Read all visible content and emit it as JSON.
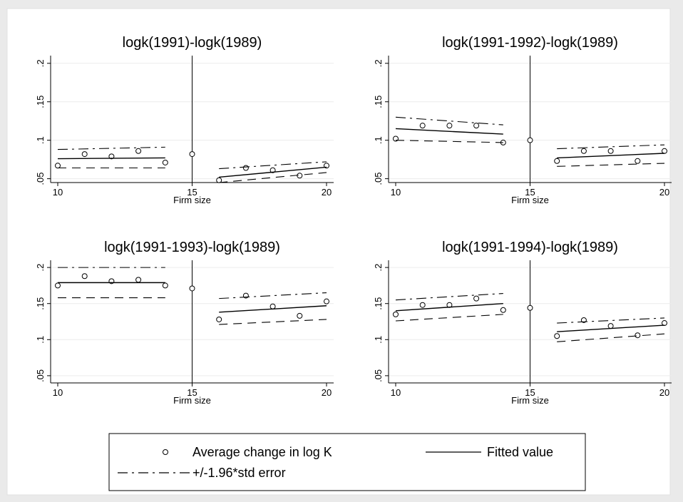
{
  "figure": {
    "panel_xlabel": "Firm size",
    "legend": {
      "marker_label": "Average change in log K",
      "fit_label": "Fitted value",
      "ci_label": "+/-1.96*std error"
    }
  },
  "chart_data": [
    {
      "type": "scatter",
      "title": "logk(1991)-logk(1989)",
      "xlabel": "Firm size",
      "ylabel": "",
      "xlim": [
        10,
        20
      ],
      "ylim": [
        0.045,
        0.21
      ],
      "xticks": [
        10,
        15,
        20
      ],
      "yticks": [
        0.05,
        0.1,
        0.15,
        0.2
      ],
      "ytick_labels": [
        ".05",
        ".1",
        ".15",
        ".2"
      ],
      "xtick_labels": [
        "10",
        "15",
        "20"
      ],
      "cutoff": 15,
      "series": [
        {
          "name": "Average change in log K",
          "x": [
            10,
            11,
            12,
            13,
            14,
            15,
            16,
            17,
            18,
            19,
            20
          ],
          "y": [
            0.067,
            0.082,
            0.079,
            0.086,
            0.071,
            0.082,
            0.048,
            0.064,
            0.061,
            0.054,
            0.067
          ]
        },
        {
          "name": "Fitted value",
          "segments": [
            {
              "x": [
                10,
                14
              ],
              "y": [
                0.076,
                0.077
              ]
            },
            {
              "x": [
                16,
                20
              ],
              "y": [
                0.052,
                0.065
              ]
            }
          ]
        },
        {
          "name": "+/-1.96*std error (upper)",
          "segments": [
            {
              "x": [
                10,
                14
              ],
              "y": [
                0.088,
                0.091
              ]
            },
            {
              "x": [
                16,
                20
              ],
              "y": [
                0.063,
                0.072
              ]
            }
          ]
        },
        {
          "name": "+/-1.96*std error (lower)",
          "segments": [
            {
              "x": [
                10,
                14
              ],
              "y": [
                0.064,
                0.064
              ]
            },
            {
              "x": [
                16,
                20
              ],
              "y": [
                0.045,
                0.058
              ]
            }
          ]
        }
      ]
    },
    {
      "type": "scatter",
      "title": "logk(1991-1992)-logk(1989)",
      "xlabel": "Firm size",
      "ylabel": "",
      "xlim": [
        10,
        20
      ],
      "ylim": [
        0.045,
        0.21
      ],
      "xticks": [
        10,
        15,
        20
      ],
      "yticks": [
        0.05,
        0.1,
        0.15,
        0.2
      ],
      "ytick_labels": [
        ".05",
        ".1",
        ".15",
        ".2"
      ],
      "xtick_labels": [
        "10",
        "15",
        "20"
      ],
      "cutoff": 15,
      "series": [
        {
          "name": "Average change in log K",
          "x": [
            10,
            11,
            12,
            13,
            14,
            15,
            16,
            17,
            18,
            19,
            20
          ],
          "y": [
            0.102,
            0.119,
            0.119,
            0.119,
            0.097,
            0.1,
            0.073,
            0.086,
            0.086,
            0.073,
            0.086
          ]
        },
        {
          "name": "Fitted value",
          "segments": [
            {
              "x": [
                10,
                14
              ],
              "y": [
                0.115,
                0.108
              ]
            },
            {
              "x": [
                16,
                20
              ],
              "y": [
                0.077,
                0.083
              ]
            }
          ]
        },
        {
          "name": "+/-1.96*std error (upper)",
          "segments": [
            {
              "x": [
                10,
                14
              ],
              "y": [
                0.13,
                0.12
              ]
            },
            {
              "x": [
                16,
                20
              ],
              "y": [
                0.089,
                0.094
              ]
            }
          ]
        },
        {
          "name": "+/-1.96*std error (lower)",
          "segments": [
            {
              "x": [
                10,
                14
              ],
              "y": [
                0.1,
                0.097
              ]
            },
            {
              "x": [
                16,
                20
              ],
              "y": [
                0.066,
                0.07
              ]
            }
          ]
        }
      ]
    },
    {
      "type": "scatter",
      "title": "logk(1991-1993)-logk(1989)",
      "xlabel": "Firm size",
      "ylabel": "",
      "xlim": [
        10,
        20
      ],
      "ylim": [
        0.04,
        0.21
      ],
      "xticks": [
        10,
        15,
        20
      ],
      "yticks": [
        0.05,
        0.1,
        0.15,
        0.2
      ],
      "ytick_labels": [
        ".05",
        ".1",
        ".15",
        ".2"
      ],
      "xtick_labels": [
        "10",
        "15",
        "20"
      ],
      "cutoff": 15,
      "series": [
        {
          "name": "Average change in log K",
          "x": [
            10,
            11,
            12,
            13,
            14,
            15,
            16,
            17,
            18,
            19,
            20
          ],
          "y": [
            0.175,
            0.188,
            0.181,
            0.183,
            0.175,
            0.171,
            0.128,
            0.161,
            0.146,
            0.133,
            0.153
          ]
        },
        {
          "name": "Fitted value",
          "segments": [
            {
              "x": [
                10,
                14
              ],
              "y": [
                0.179,
                0.179
              ]
            },
            {
              "x": [
                16,
                20
              ],
              "y": [
                0.138,
                0.147
              ]
            }
          ]
        },
        {
          "name": "+/-1.96*std error (upper)",
          "segments": [
            {
              "x": [
                10,
                14
              ],
              "y": [
                0.2,
                0.2
              ]
            },
            {
              "x": [
                16,
                20
              ],
              "y": [
                0.157,
                0.165
              ]
            }
          ]
        },
        {
          "name": "+/-1.96*std error (lower)",
          "segments": [
            {
              "x": [
                10,
                14
              ],
              "y": [
                0.158,
                0.158
              ]
            },
            {
              "x": [
                16,
                20
              ],
              "y": [
                0.121,
                0.128
              ]
            }
          ]
        }
      ]
    },
    {
      "type": "scatter",
      "title": "logk(1991-1994)-logk(1989)",
      "xlabel": "Firm size",
      "ylabel": "",
      "xlim": [
        10,
        20
      ],
      "ylim": [
        0.04,
        0.21
      ],
      "xticks": [
        10,
        15,
        20
      ],
      "yticks": [
        0.05,
        0.1,
        0.15,
        0.2
      ],
      "ytick_labels": [
        ".05",
        ".1",
        ".15",
        ".2"
      ],
      "xtick_labels": [
        "10",
        "15",
        "20"
      ],
      "cutoff": 15,
      "series": [
        {
          "name": "Average change in log K",
          "x": [
            10,
            11,
            12,
            13,
            14,
            15,
            16,
            17,
            18,
            19,
            20
          ],
          "y": [
            0.135,
            0.148,
            0.148,
            0.157,
            0.141,
            0.144,
            0.105,
            0.127,
            0.119,
            0.106,
            0.123
          ]
        },
        {
          "name": "Fitted value",
          "segments": [
            {
              "x": [
                10,
                14
              ],
              "y": [
                0.14,
                0.15
              ]
            },
            {
              "x": [
                16,
                20
              ],
              "y": [
                0.111,
                0.12
              ]
            }
          ]
        },
        {
          "name": "+/-1.96*std error (upper)",
          "segments": [
            {
              "x": [
                10,
                14
              ],
              "y": [
                0.155,
                0.164
              ]
            },
            {
              "x": [
                16,
                20
              ],
              "y": [
                0.123,
                0.13
              ]
            }
          ]
        },
        {
          "name": "+/-1.96*std error (lower)",
          "segments": [
            {
              "x": [
                10,
                14
              ],
              "y": [
                0.126,
                0.135
              ]
            },
            {
              "x": [
                16,
                20
              ],
              "y": [
                0.097,
                0.108
              ]
            }
          ]
        }
      ]
    }
  ]
}
